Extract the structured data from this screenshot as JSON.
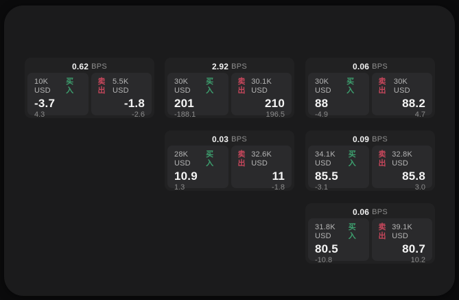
{
  "labels": {
    "buy": "买入",
    "sell": "卖出",
    "bps": "BPS"
  },
  "colors": {
    "buy": "#3da06f",
    "sell": "#c8475c"
  },
  "cards": [
    {
      "row": 0,
      "col": 0,
      "bps": "0.62",
      "buy": {
        "size": "10K USD",
        "price": "-3.7",
        "delta": "4.3"
      },
      "sell": {
        "size": "5.5K USD",
        "price": "-1.8",
        "delta": "-2.6"
      }
    },
    {
      "row": 0,
      "col": 1,
      "bps": "2.92",
      "buy": {
        "size": "30K USD",
        "price": "201",
        "delta": "-188.1"
      },
      "sell": {
        "size": "30.1K USD",
        "price": "210",
        "delta": "196.5"
      }
    },
    {
      "row": 0,
      "col": 2,
      "bps": "0.06",
      "buy": {
        "size": "30K USD",
        "price": "88",
        "delta": "-4.9"
      },
      "sell": {
        "size": "30K USD",
        "price": "88.2",
        "delta": "4.7"
      }
    },
    {
      "row": 1,
      "col": 1,
      "bps": "0.03",
      "buy": {
        "size": "28K USD",
        "price": "10.9",
        "delta": "1.3"
      },
      "sell": {
        "size": "32.6K USD",
        "price": "11",
        "delta": "-1.8"
      }
    },
    {
      "row": 1,
      "col": 2,
      "bps": "0.09",
      "buy": {
        "size": "34.1K USD",
        "price": "85.5",
        "delta": "-3.1"
      },
      "sell": {
        "size": "32.8K USD",
        "price": "85.8",
        "delta": "3.0"
      }
    },
    {
      "row": 2,
      "col": 2,
      "bps": "0.06",
      "buy": {
        "size": "31.8K USD",
        "price": "80.5",
        "delta": "-10.8"
      },
      "sell": {
        "size": "39.1K USD",
        "price": "80.7",
        "delta": "10.2"
      }
    }
  ]
}
